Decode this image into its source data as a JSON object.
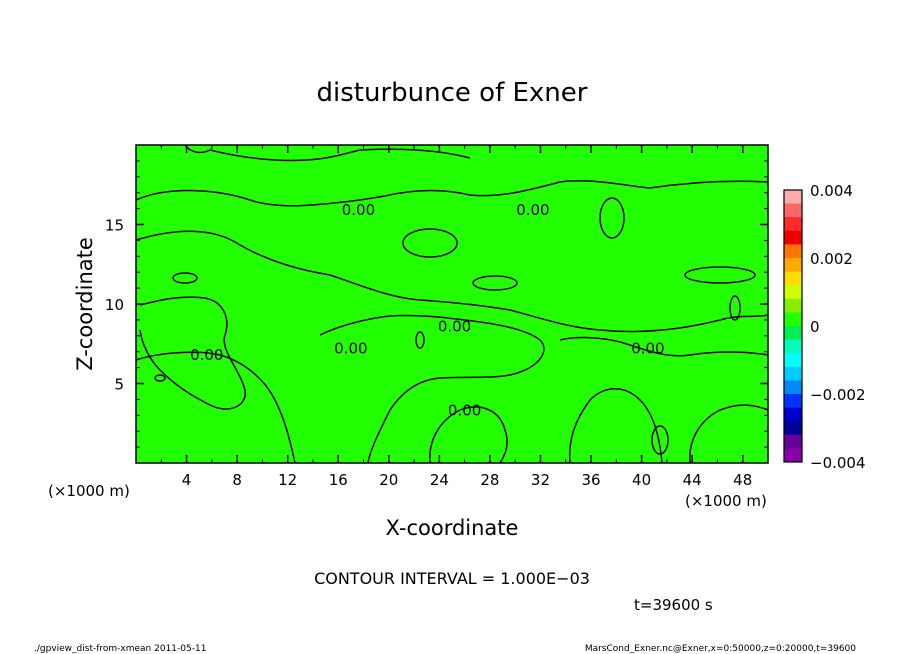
{
  "chart_data": {
    "type": "heatmap",
    "title": "disturbunce of Exner",
    "xlabel": "X-coordinate",
    "ylabel": "Z-coordinate",
    "x_unit_left": "(×1000 m)",
    "x_unit_right": "(×1000 m)",
    "xlim": [
      0,
      50
    ],
    "ylim": [
      0,
      20
    ],
    "x_ticks": [
      4,
      8,
      12,
      16,
      20,
      24,
      28,
      32,
      36,
      40,
      44,
      48
    ],
    "y_ticks": [
      5,
      10,
      15
    ],
    "fill_color": "#22ff00",
    "contour_color": "#000000",
    "contour_labels": [
      {
        "text": "0.00",
        "x": 17.6,
        "z": 15.9
      },
      {
        "text": "0.00",
        "x": 31.4,
        "z": 15.9
      },
      {
        "text": "0.00",
        "x": 5.6,
        "z": 6.8
      },
      {
        "text": "0.00",
        "x": 17.0,
        "z": 7.2
      },
      {
        "text": "0.00",
        "x": 25.2,
        "z": 8.6
      },
      {
        "text": "0.00",
        "x": 40.5,
        "z": 7.2
      },
      {
        "text": "0.00",
        "x": 26.0,
        "z": 3.3
      }
    ],
    "colorbar": {
      "ticks": [
        "0.004",
        "0.002",
        "0",
        "−0.002",
        "−0.004"
      ],
      "colors": [
        "#ffaaaa",
        "#ff6666",
        "#ff2a2a",
        "#ee0000",
        "#ff7700",
        "#ffaa00",
        "#ffdd00",
        "#ccff00",
        "#88ee00",
        "#22ff00",
        "#00ee55",
        "#00ffbb",
        "#00ffff",
        "#00ccff",
        "#0088ff",
        "#0033ff",
        "#0000cc",
        "#000099",
        "#660099",
        "#8800aa"
      ]
    },
    "contour_interval": "CONTOUR INTERVAL = 1.000E−03",
    "time_label": "t=39600 s"
  },
  "footer": {
    "left": "./gpview_dist-from-xmean 2011-05-11",
    "right": "MarsCond_Exner.nc@Exner,x=0:50000,z=0:20000,t=39600"
  }
}
